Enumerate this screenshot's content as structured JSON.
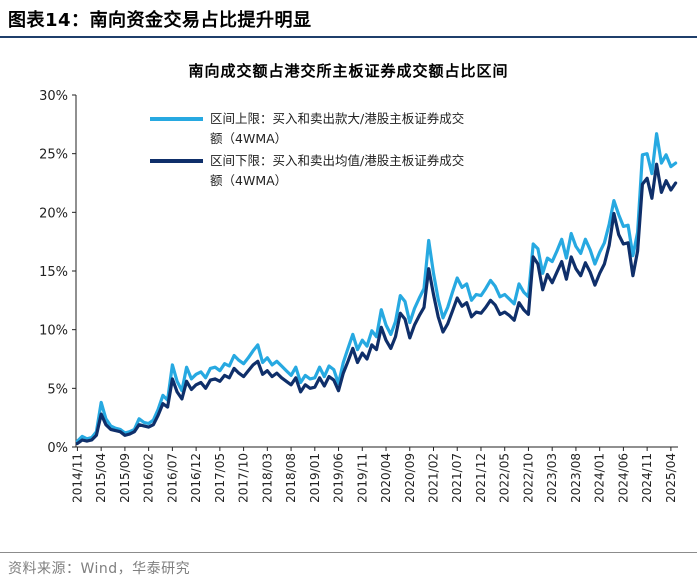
{
  "figure": {
    "label": "图表14：",
    "title": "南向资金交易占比提升明显",
    "source": "资料来源：Wind，华泰研究"
  },
  "colors": {
    "series_upper": "#27a9e1",
    "series_lower": "#0f2f6a",
    "axis": "#222222"
  },
  "chart_data": {
    "type": "line",
    "title": "南向成交额占港交所主板证券成交额占比区间",
    "xlabel": "",
    "ylabel": "",
    "ylim": [
      0,
      30
    ],
    "yticks": [
      0,
      5,
      10,
      15,
      20,
      25,
      30
    ],
    "ytick_labels": [
      "0%",
      "5%",
      "10%",
      "15%",
      "20%",
      "25%",
      "30%"
    ],
    "xticks": [
      "2014/11",
      "2015/04",
      "2015/09",
      "2016/02",
      "2016/07",
      "2016/12",
      "2017/05",
      "2017/10",
      "2018/03",
      "2018/08",
      "2019/01",
      "2019/06",
      "2019/11",
      "2020/04",
      "2020/09",
      "2021/02",
      "2021/07",
      "2021/12",
      "2022/05",
      "2022/10",
      "2023/03",
      "2023/08",
      "2024/01",
      "2024/06",
      "2024/11",
      "2025/04"
    ],
    "grid": false,
    "legend_position": "top-left",
    "series": [
      {
        "name": "区间上限：买入和卖出款大/港股主板证券成交额（4WMA）",
        "points": [
          [
            "2014/11",
            0.5
          ],
          [
            "2014/12",
            0.9
          ],
          [
            "2015/01",
            0.7
          ],
          [
            "2015/02",
            0.8
          ],
          [
            "2015/03",
            1.3
          ],
          [
            "2015/04",
            3.8
          ],
          [
            "2015/05",
            2.4
          ],
          [
            "2015/06",
            1.8
          ],
          [
            "2015/07",
            1.6
          ],
          [
            "2015/08",
            1.5
          ],
          [
            "2015/09",
            1.2
          ],
          [
            "2015/10",
            1.3
          ],
          [
            "2015/11",
            1.5
          ],
          [
            "2015/12",
            2.4
          ],
          [
            "2016/01",
            2.1
          ],
          [
            "2016/02",
            2.0
          ],
          [
            "2016/03",
            2.3
          ],
          [
            "2016/04",
            3.2
          ],
          [
            "2016/05",
            4.4
          ],
          [
            "2016/06",
            4.0
          ],
          [
            "2016/07",
            7.0
          ],
          [
            "2016/08",
            5.6
          ],
          [
            "2016/09",
            4.8
          ],
          [
            "2016/10",
            6.8
          ],
          [
            "2016/11",
            5.8
          ],
          [
            "2016/12",
            6.2
          ],
          [
            "2017/01",
            6.4
          ],
          [
            "2017/02",
            5.9
          ],
          [
            "2017/03",
            6.7
          ],
          [
            "2017/04",
            6.8
          ],
          [
            "2017/05",
            6.5
          ],
          [
            "2017/06",
            7.1
          ],
          [
            "2017/07",
            6.9
          ],
          [
            "2017/08",
            7.8
          ],
          [
            "2017/09",
            7.4
          ],
          [
            "2017/10",
            7.1
          ],
          [
            "2017/11",
            7.6
          ],
          [
            "2017/12",
            8.2
          ],
          [
            "2018/01",
            8.7
          ],
          [
            "2018/02",
            7.2
          ],
          [
            "2018/03",
            7.6
          ],
          [
            "2018/04",
            7.0
          ],
          [
            "2018/05",
            7.3
          ],
          [
            "2018/06",
            6.9
          ],
          [
            "2018/07",
            6.5
          ],
          [
            "2018/08",
            6.1
          ],
          [
            "2018/09",
            6.8
          ],
          [
            "2018/10",
            5.5
          ],
          [
            "2018/11",
            6.1
          ],
          [
            "2018/12",
            5.8
          ],
          [
            "2019/01",
            5.9
          ],
          [
            "2019/02",
            6.8
          ],
          [
            "2019/03",
            6.0
          ],
          [
            "2019/04",
            6.9
          ],
          [
            "2019/05",
            6.6
          ],
          [
            "2019/06",
            5.4
          ],
          [
            "2019/07",
            7.2
          ],
          [
            "2019/08",
            8.4
          ],
          [
            "2019/09",
            9.6
          ],
          [
            "2019/10",
            8.3
          ],
          [
            "2019/11",
            9.1
          ],
          [
            "2019/12",
            8.6
          ],
          [
            "2020/01",
            9.9
          ],
          [
            "2020/02",
            9.4
          ],
          [
            "2020/03",
            11.7
          ],
          [
            "2020/04",
            10.4
          ],
          [
            "2020/05",
            9.6
          ],
          [
            "2020/06",
            10.7
          ],
          [
            "2020/07",
            12.9
          ],
          [
            "2020/08",
            12.4
          ],
          [
            "2020/09",
            10.6
          ],
          [
            "2020/10",
            11.8
          ],
          [
            "2020/11",
            12.7
          ],
          [
            "2020/12",
            13.5
          ],
          [
            "2021/01",
            17.6
          ],
          [
            "2021/02",
            14.8
          ],
          [
            "2021/03",
            12.6
          ],
          [
            "2021/04",
            11.0
          ],
          [
            "2021/05",
            11.9
          ],
          [
            "2021/06",
            13.2
          ],
          [
            "2021/07",
            14.4
          ],
          [
            "2021/08",
            13.6
          ],
          [
            "2021/09",
            13.9
          ],
          [
            "2021/10",
            12.5
          ],
          [
            "2021/11",
            13.0
          ],
          [
            "2021/12",
            12.9
          ],
          [
            "2022/01",
            13.5
          ],
          [
            "2022/02",
            14.2
          ],
          [
            "2022/03",
            13.7
          ],
          [
            "2022/04",
            12.8
          ],
          [
            "2022/05",
            13.0
          ],
          [
            "2022/06",
            12.6
          ],
          [
            "2022/07",
            12.2
          ],
          [
            "2022/08",
            13.9
          ],
          [
            "2022/09",
            13.2
          ],
          [
            "2022/10",
            12.8
          ],
          [
            "2022/11",
            17.3
          ],
          [
            "2022/12",
            16.9
          ],
          [
            "2023/01",
            14.8
          ],
          [
            "2023/02",
            16.1
          ],
          [
            "2023/03",
            15.8
          ],
          [
            "2023/04",
            16.7
          ],
          [
            "2023/05",
            17.7
          ],
          [
            "2023/06",
            16.1
          ],
          [
            "2023/07",
            18.2
          ],
          [
            "2023/08",
            17.1
          ],
          [
            "2023/09",
            16.5
          ],
          [
            "2023/10",
            17.7
          ],
          [
            "2023/11",
            16.8
          ],
          [
            "2023/12",
            15.6
          ],
          [
            "2024/01",
            16.6
          ],
          [
            "2024/02",
            17.4
          ],
          [
            "2024/03",
            19.0
          ],
          [
            "2024/04",
            21.0
          ],
          [
            "2024/05",
            19.8
          ],
          [
            "2024/06",
            18.8
          ],
          [
            "2024/07",
            18.9
          ],
          [
            "2024/08",
            16.3
          ],
          [
            "2024/09",
            18.3
          ],
          [
            "2024/10",
            24.9
          ],
          [
            "2024/11",
            25.0
          ],
          [
            "2024/12",
            23.3
          ],
          [
            "2025/01",
            26.7
          ],
          [
            "2025/02",
            24.2
          ],
          [
            "2025/03",
            24.9
          ],
          [
            "2025/04",
            23.9
          ],
          [
            "2025/05",
            24.2
          ]
        ]
      },
      {
        "name": "区间下限：买入和卖出均值/港股主板证券成交额（4WMA）",
        "points": [
          [
            "2014/11",
            0.3
          ],
          [
            "2014/12",
            0.6
          ],
          [
            "2015/01",
            0.5
          ],
          [
            "2015/02",
            0.6
          ],
          [
            "2015/03",
            1.0
          ],
          [
            "2015/04",
            2.8
          ],
          [
            "2015/05",
            1.9
          ],
          [
            "2015/06",
            1.5
          ],
          [
            "2015/07",
            1.4
          ],
          [
            "2015/08",
            1.3
          ],
          [
            "2015/09",
            1.0
          ],
          [
            "2015/10",
            1.1
          ],
          [
            "2015/11",
            1.3
          ],
          [
            "2015/12",
            1.9
          ],
          [
            "2016/01",
            1.8
          ],
          [
            "2016/02",
            1.7
          ],
          [
            "2016/03",
            1.9
          ],
          [
            "2016/04",
            2.7
          ],
          [
            "2016/05",
            3.7
          ],
          [
            "2016/06",
            3.4
          ],
          [
            "2016/07",
            5.8
          ],
          [
            "2016/08",
            4.7
          ],
          [
            "2016/09",
            4.1
          ],
          [
            "2016/10",
            5.6
          ],
          [
            "2016/11",
            4.9
          ],
          [
            "2016/12",
            5.3
          ],
          [
            "2017/01",
            5.5
          ],
          [
            "2017/02",
            5.0
          ],
          [
            "2017/03",
            5.7
          ],
          [
            "2017/04",
            5.8
          ],
          [
            "2017/05",
            5.6
          ],
          [
            "2017/06",
            6.1
          ],
          [
            "2017/07",
            5.9
          ],
          [
            "2017/08",
            6.7
          ],
          [
            "2017/09",
            6.3
          ],
          [
            "2017/10",
            6.0
          ],
          [
            "2017/11",
            6.5
          ],
          [
            "2017/12",
            7.0
          ],
          [
            "2018/01",
            7.3
          ],
          [
            "2018/02",
            6.2
          ],
          [
            "2018/03",
            6.5
          ],
          [
            "2018/04",
            6.0
          ],
          [
            "2018/05",
            6.3
          ],
          [
            "2018/06",
            5.9
          ],
          [
            "2018/07",
            5.6
          ],
          [
            "2018/08",
            5.3
          ],
          [
            "2018/09",
            5.9
          ],
          [
            "2018/10",
            4.7
          ],
          [
            "2018/11",
            5.3
          ],
          [
            "2018/12",
            5.0
          ],
          [
            "2019/01",
            5.1
          ],
          [
            "2019/02",
            5.9
          ],
          [
            "2019/03",
            5.2
          ],
          [
            "2019/04",
            6.0
          ],
          [
            "2019/05",
            5.7
          ],
          [
            "2019/06",
            4.8
          ],
          [
            "2019/07",
            6.3
          ],
          [
            "2019/08",
            7.3
          ],
          [
            "2019/09",
            8.4
          ],
          [
            "2019/10",
            7.2
          ],
          [
            "2019/11",
            8.0
          ],
          [
            "2019/12",
            7.5
          ],
          [
            "2020/01",
            8.7
          ],
          [
            "2020/02",
            8.3
          ],
          [
            "2020/03",
            10.2
          ],
          [
            "2020/04",
            9.1
          ],
          [
            "2020/05",
            8.4
          ],
          [
            "2020/06",
            9.4
          ],
          [
            "2020/07",
            11.4
          ],
          [
            "2020/08",
            10.9
          ],
          [
            "2020/09",
            9.3
          ],
          [
            "2020/10",
            10.4
          ],
          [
            "2020/11",
            11.2
          ],
          [
            "2020/12",
            11.9
          ],
          [
            "2021/01",
            15.2
          ],
          [
            "2021/02",
            13.0
          ],
          [
            "2021/03",
            11.1
          ],
          [
            "2021/04",
            9.8
          ],
          [
            "2021/05",
            10.5
          ],
          [
            "2021/06",
            11.6
          ],
          [
            "2021/07",
            12.7
          ],
          [
            "2021/08",
            12.0
          ],
          [
            "2021/09",
            12.3
          ],
          [
            "2021/10",
            11.1
          ],
          [
            "2021/11",
            11.5
          ],
          [
            "2021/12",
            11.4
          ],
          [
            "2022/01",
            11.9
          ],
          [
            "2022/02",
            12.5
          ],
          [
            "2022/03",
            12.1
          ],
          [
            "2022/04",
            11.3
          ],
          [
            "2022/05",
            11.5
          ],
          [
            "2022/06",
            11.2
          ],
          [
            "2022/07",
            10.8
          ],
          [
            "2022/08",
            12.3
          ],
          [
            "2022/09",
            11.7
          ],
          [
            "2022/10",
            11.3
          ],
          [
            "2022/11",
            16.2
          ],
          [
            "2022/12",
            15.6
          ],
          [
            "2023/01",
            13.4
          ],
          [
            "2023/02",
            14.7
          ],
          [
            "2023/03",
            14.0
          ],
          [
            "2023/04",
            14.9
          ],
          [
            "2023/05",
            15.8
          ],
          [
            "2023/06",
            14.3
          ],
          [
            "2023/07",
            16.2
          ],
          [
            "2023/08",
            15.2
          ],
          [
            "2023/09",
            14.6
          ],
          [
            "2023/10",
            15.7
          ],
          [
            "2023/11",
            14.9
          ],
          [
            "2023/12",
            13.8
          ],
          [
            "2024/01",
            14.8
          ],
          [
            "2024/02",
            15.6
          ],
          [
            "2024/03",
            17.2
          ],
          [
            "2024/04",
            19.9
          ],
          [
            "2024/05",
            18.1
          ],
          [
            "2024/06",
            17.3
          ],
          [
            "2024/07",
            17.4
          ],
          [
            "2024/08",
            14.6
          ],
          [
            "2024/09",
            16.7
          ],
          [
            "2024/10",
            22.4
          ],
          [
            "2024/11",
            22.9
          ],
          [
            "2024/12",
            21.2
          ],
          [
            "2025/01",
            24.1
          ],
          [
            "2025/02",
            21.7
          ],
          [
            "2025/03",
            22.7
          ],
          [
            "2025/04",
            21.9
          ],
          [
            "2025/05",
            22.5
          ]
        ]
      }
    ]
  }
}
